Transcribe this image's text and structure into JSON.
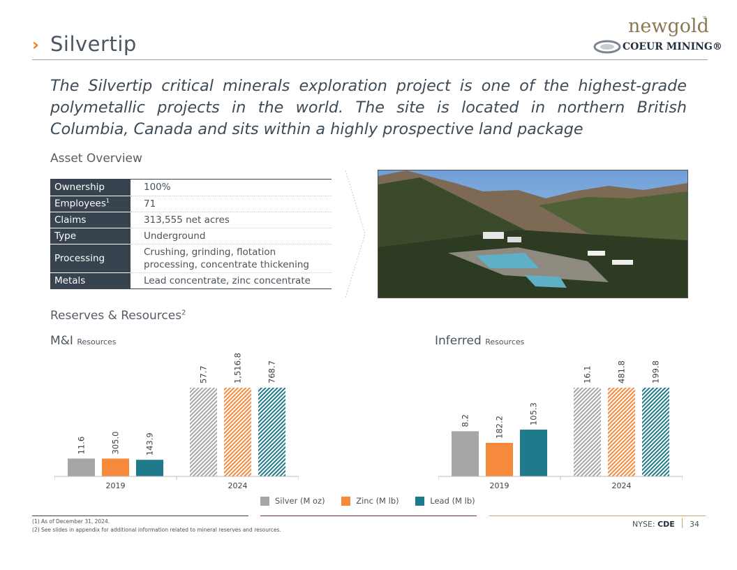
{
  "header": {
    "title": "Silvertip",
    "logo_newgold": "newgold",
    "logo_tm": "™",
    "logo_coeur": "COEUR MINING®"
  },
  "intro": "The Silvertip critical minerals exploration project is one of the highest-grade polymetallic projects in the world. The site is located in northern British Columbia, Canada and sits within a highly prospective land package",
  "asset_overview": {
    "heading": "Asset Overview",
    "rows": [
      {
        "key": "Ownership",
        "sup": "",
        "value": "100%"
      },
      {
        "key": "Employees",
        "sup": "1",
        "value": "71"
      },
      {
        "key": "Claims",
        "sup": "",
        "value": "313,555 net acres"
      },
      {
        "key": "Type",
        "sup": "",
        "value": "Underground"
      },
      {
        "key": "Processing",
        "sup": "",
        "value": "Crushing, grinding, flotation processing, concentrate thickening"
      },
      {
        "key": "Metals",
        "sup": "",
        "value": "Lead concentrate, zinc concentrate"
      }
    ]
  },
  "reserves": {
    "heading": "Reserves & Resources",
    "heading_sup": "2",
    "mi_title": "M&I",
    "mi_suffix": "Resources",
    "inf_title": "Inferred",
    "inf_suffix": "Resources"
  },
  "colors": {
    "silver": "#a6a6a6",
    "zinc": "#f58a3c",
    "lead": "#1f7a8c",
    "accent": "#f07f23"
  },
  "chart_data": [
    {
      "type": "bar",
      "title": "M&I Resources",
      "categories": [
        "2019",
        "2024"
      ],
      "series": [
        {
          "name": "Silver (M oz)",
          "values": [
            11.6,
            57.7
          ],
          "labels": [
            "11.6",
            "57.7"
          ]
        },
        {
          "name": "Zinc (M lb)",
          "values": [
            305.0,
            1516.8
          ],
          "labels": [
            "305.0",
            "1,516.8"
          ]
        },
        {
          "name": "Lead (M lb)",
          "values": [
            143.9,
            768.7
          ],
          "labels": [
            "143.9",
            "768.7"
          ]
        }
      ]
    },
    {
      "type": "bar",
      "title": "Inferred Resources",
      "categories": [
        "2019",
        "2024"
      ],
      "series": [
        {
          "name": "Silver (M oz)",
          "values": [
            8.2,
            16.1
          ],
          "labels": [
            "8.2",
            "16.1"
          ]
        },
        {
          "name": "Zinc (M lb)",
          "values": [
            182.2,
            481.8
          ],
          "labels": [
            "182.2",
            "481.8"
          ]
        },
        {
          "name": "Lead (M lb)",
          "values": [
            105.3,
            199.8
          ],
          "labels": [
            "105.3",
            "199.8"
          ]
        }
      ]
    }
  ],
  "legend": [
    "Silver (M oz)",
    "Zinc (M lb)",
    "Lead (M lb)"
  ],
  "footer": {
    "note1": "(1) As of December 31, 2024.",
    "note2": "(2) See slides in appendix for additional information related to mineral reserves and resources.",
    "ticker_prefix": "NYSE:",
    "ticker": "CDE",
    "page": "34"
  }
}
